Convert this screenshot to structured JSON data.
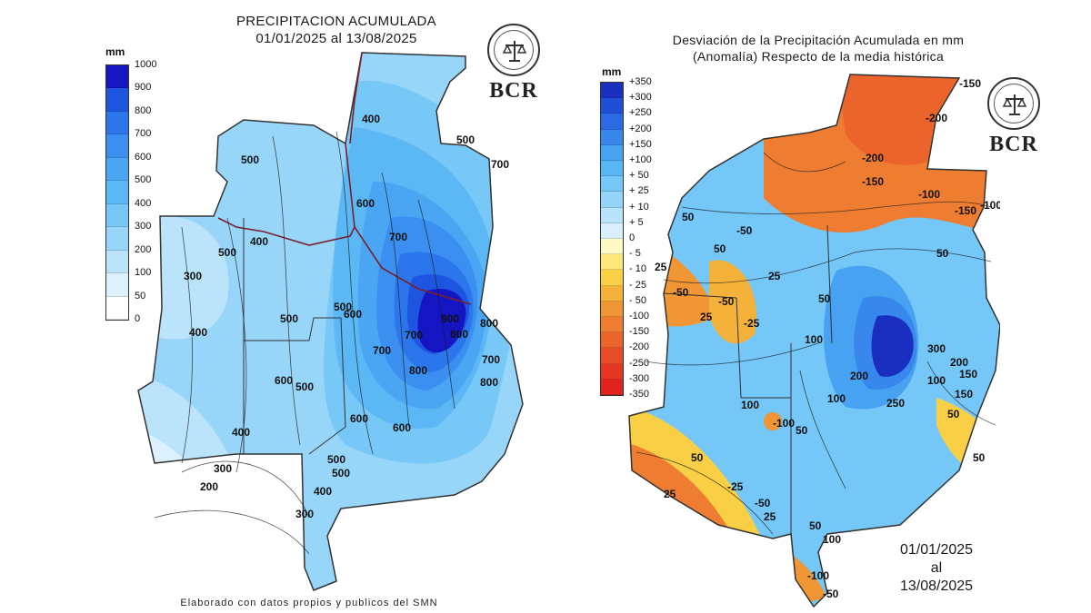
{
  "left_map": {
    "title_line1": "PRECIPITACION ACUMULADA",
    "title_line2": "01/01/2025 al 13/08/2025",
    "legend_unit": "mm",
    "legend_labels": [
      "1000",
      "900",
      "800",
      "700",
      "600",
      "500",
      "400",
      "300",
      "200",
      "100",
      "50",
      "0"
    ],
    "legend_colors": [
      "#1515c4",
      "#1e55e0",
      "#2b76ea",
      "#3a8ff0",
      "#4aa6f3",
      "#5cb8f5",
      "#78c8f7",
      "#98d6f9",
      "#bbe4fb",
      "#dcf1fd",
      "#ffffff"
    ],
    "contour_labels": [
      "400",
      "500",
      "500",
      "600",
      "700",
      "500",
      "400",
      "300",
      "400",
      "500",
      "600",
      "500",
      "700",
      "800",
      "900",
      "800",
      "700",
      "800",
      "600",
      "500",
      "400",
      "300",
      "200",
      "600",
      "500",
      "600",
      "500",
      "400",
      "300",
      "700",
      "800",
      "700"
    ],
    "footer": "Elaborado con datos propios y publicos del SMN",
    "logo_text": "BCR"
  },
  "right_map": {
    "title_line1": "Desviación de la Precipitación Acumulada en mm",
    "title_line2": "(Anomalía) Respecto de la media histórica",
    "legend_unit": "mm",
    "legend_labels": [
      "+350",
      "+300",
      "+250",
      "+200",
      "+150",
      "+100",
      "+ 50",
      "+ 25",
      "+ 10",
      "+ 5",
      "0",
      "- 5",
      "- 10",
      "- 25",
      "- 50",
      "-100",
      "-150",
      "-200",
      "-250",
      "-300",
      "-350"
    ],
    "legend_colors": [
      "#1a2fc0",
      "#1f4fd6",
      "#2a6ae4",
      "#3787ec",
      "#47a2f1",
      "#58b6f4",
      "#74c7f7",
      "#95d5f9",
      "#b7e3fb",
      "#d8f0fd",
      "#fff9c4",
      "#fbe77a",
      "#f8cf45",
      "#f4b23a",
      "#f19635",
      "#ee7d31",
      "#ea642c",
      "#e84b27",
      "#e43622",
      "#e0241d"
    ],
    "contour_labels": [
      "-150",
      "-200",
      "-200",
      "-150",
      "-100",
      "-150",
      "-100",
      "-50",
      "50",
      "25",
      "50",
      "25",
      "50",
      "-50",
      "-25",
      "-50",
      "25",
      "50",
      "100",
      "200",
      "300",
      "250",
      "200",
      "150",
      "100",
      "150",
      "50",
      "100",
      "50",
      "25",
      "50",
      "100",
      "-100",
      "50",
      "-25",
      "-50",
      "25",
      "50",
      "100",
      "-100",
      "-50"
    ],
    "date_line1": "01/01/2025",
    "date_line2": "al",
    "date_line3": "13/08/2025",
    "logo_text": "BCR"
  }
}
